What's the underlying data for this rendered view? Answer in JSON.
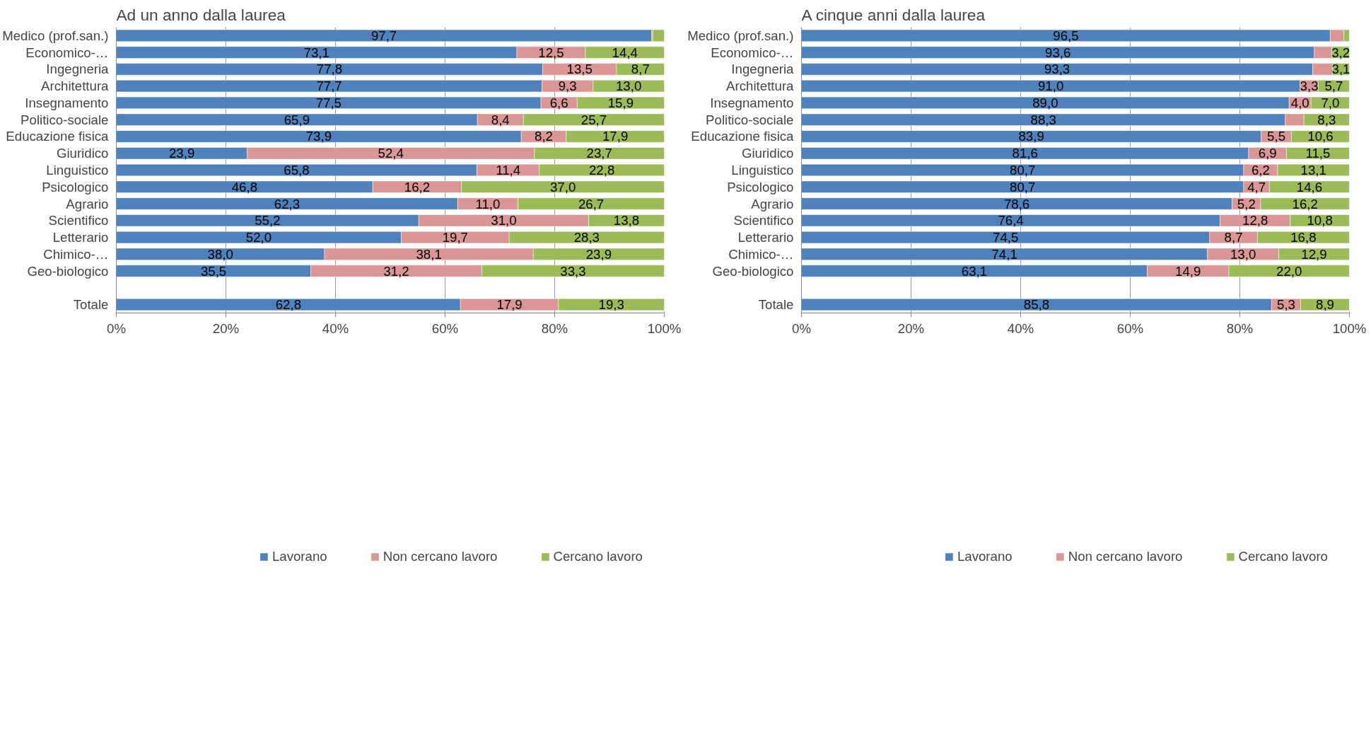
{
  "chart_data": [
    {
      "type": "bar",
      "orientation": "horizontal",
      "stacked": true,
      "title": "Ad un anno dalla laurea",
      "categories": [
        "Medico (prof.san.)",
        "Economico-…",
        "Ingegneria",
        "Architettura",
        "Insegnamento",
        "Politico-sociale",
        "Educazione fisica",
        "Giuridico",
        "Linguistico",
        "Psicologico",
        "Agrario",
        "Scientifico",
        "Letterario",
        "Chimico-…",
        "Geo-biologico",
        null,
        "Totale"
      ],
      "series": [
        {
          "name": "Lavorano",
          "color": "#4f81bd",
          "values": [
            97.7,
            73.1,
            77.8,
            77.7,
            77.5,
            65.9,
            73.9,
            23.9,
            65.8,
            46.8,
            62.3,
            55.2,
            52.0,
            38.0,
            35.5,
            null,
            62.8
          ],
          "value_labels": [
            "97,7",
            "73,1",
            "77,8",
            "77,7",
            "77,5",
            "65,9",
            "73,9",
            "23,9",
            "65,8",
            "46,8",
            "62,3",
            "55,2",
            "52,0",
            "38,0",
            "35,5",
            null,
            "62,8"
          ]
        },
        {
          "name": "Non cercano lavoro",
          "color": "#d99694",
          "values": [
            0.2,
            12.5,
            13.5,
            9.3,
            6.6,
            8.4,
            8.2,
            52.4,
            11.4,
            16.2,
            11.0,
            31.0,
            19.7,
            38.1,
            31.2,
            null,
            17.9
          ],
          "value_labels": [
            null,
            "12,5",
            "13,5",
            "9,3",
            "6,6",
            "8,4",
            "8,2",
            "52,4",
            "11,4",
            "16,2",
            "11,0",
            "31,0",
            "19,7",
            "38,1",
            "31,2",
            null,
            "17,9"
          ]
        },
        {
          "name": "Cercano lavoro",
          "color": "#9bbb59",
          "values": [
            2.1,
            14.4,
            8.7,
            13.0,
            15.9,
            25.7,
            17.9,
            23.7,
            22.8,
            37.0,
            26.7,
            13.8,
            28.3,
            23.9,
            33.3,
            null,
            19.3
          ],
          "value_labels": [
            null,
            "14,4",
            "8,7",
            "13,0",
            "15,9",
            "25,7",
            "17,9",
            "23,7",
            "22,8",
            "37,0",
            "26,7",
            "13,8",
            "28,3",
            "23,9",
            "33,3",
            null,
            "19,3"
          ]
        }
      ],
      "xlim": [
        0,
        100
      ],
      "xticks": [
        {
          "value": 0,
          "label": "0%"
        },
        {
          "value": 20,
          "label": "20%"
        },
        {
          "value": 40,
          "label": "40%"
        },
        {
          "value": 60,
          "label": "60%"
        },
        {
          "value": 80,
          "label": "80%"
        },
        {
          "value": 100,
          "label": "100%"
        }
      ],
      "grid": "x",
      "legend": "bottom"
    },
    {
      "type": "bar",
      "orientation": "horizontal",
      "stacked": true,
      "title": "A cinque anni dalla laurea",
      "categories": [
        "Medico (prof.san.)",
        "Economico-…",
        "Ingegneria",
        "Architettura",
        "Insegnamento",
        "Politico-sociale",
        "Educazione fisica",
        "Giuridico",
        "Linguistico",
        "Psicologico",
        "Agrario",
        "Scientifico",
        "Letterario",
        "Chimico-…",
        "Geo-biologico",
        null,
        "Totale"
      ],
      "series": [
        {
          "name": "Lavorano",
          "color": "#4f81bd",
          "values": [
            96.5,
            93.6,
            93.3,
            91.0,
            89.0,
            88.3,
            83.9,
            81.6,
            80.7,
            80.7,
            78.6,
            76.4,
            74.5,
            74.1,
            63.1,
            null,
            85.8
          ],
          "value_labels": [
            "96,5",
            "93,6",
            "93,3",
            "91,0",
            "89,0",
            "88,3",
            "83,9",
            "81,6",
            "80,7",
            "80,7",
            "78,6",
            "76,4",
            "74,5",
            "74,1",
            "63,1",
            null,
            "85,8"
          ]
        },
        {
          "name": "Non cercano lavoro",
          "color": "#d99694",
          "values": [
            2.5,
            3.2,
            3.6,
            3.3,
            4.0,
            3.4,
            5.5,
            6.9,
            6.2,
            4.7,
            5.2,
            12.8,
            8.7,
            13.0,
            14.9,
            null,
            5.3
          ],
          "value_labels": [
            null,
            null,
            null,
            "3,3",
            "4,0",
            null,
            "5,5",
            "6,9",
            "6,2",
            "4,7",
            "5,2",
            "12,8",
            "8,7",
            "13,0",
            "14,9",
            null,
            "5,3"
          ]
        },
        {
          "name": "Cercano lavoro",
          "color": "#9bbb59",
          "values": [
            1.0,
            3.2,
            3.1,
            5.7,
            7.0,
            8.3,
            10.6,
            11.5,
            13.1,
            14.6,
            16.2,
            10.8,
            16.8,
            12.9,
            22.0,
            null,
            8.9
          ],
          "value_labels": [
            null,
            "3,2",
            "3,1",
            "5,7",
            "7,0",
            "8,3",
            "10,6",
            "11,5",
            "13,1",
            "14,6",
            "16,2",
            "10,8",
            "16,8",
            "12,9",
            "22,0",
            null,
            "8,9"
          ]
        }
      ],
      "xlim": [
        0,
        100
      ],
      "xticks": [
        {
          "value": 0,
          "label": "0%"
        },
        {
          "value": 20,
          "label": "20%"
        },
        {
          "value": 40,
          "label": "40%"
        },
        {
          "value": 60,
          "label": "60%"
        },
        {
          "value": 80,
          "label": "80%"
        },
        {
          "value": 100,
          "label": "100%"
        }
      ],
      "grid": "x",
      "legend": "bottom"
    }
  ]
}
